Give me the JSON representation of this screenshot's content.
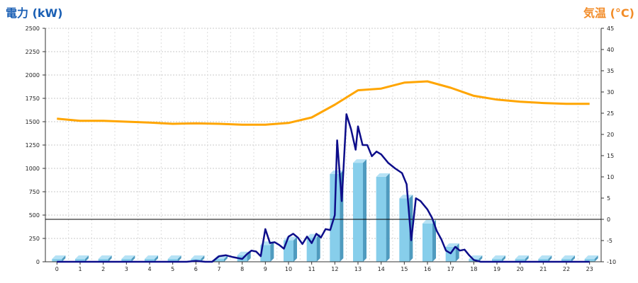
{
  "chart_data": {
    "type": "bar+line",
    "left_axis": {
      "label": "電力 (kW)",
      "min": 0,
      "max": 2500,
      "ticks": [
        0,
        250,
        500,
        750,
        1000,
        1250,
        1500,
        1750,
        2000,
        2250,
        2500
      ],
      "color": "#1a5fb4"
    },
    "right_axis": {
      "label": "気温 (°C)",
      "min": -10,
      "max": 45,
      "ticks": [
        -10,
        -5,
        0,
        5,
        10,
        15,
        20,
        25,
        30,
        35,
        40,
        45
      ],
      "color": "#f28c28"
    },
    "x_axis": {
      "categories": [
        "0",
        "1",
        "2",
        "3",
        "4",
        "5",
        "6",
        "7",
        "8",
        "9",
        "10",
        "11",
        "12",
        "13",
        "14",
        "15",
        "16",
        "17",
        "18",
        "19",
        "20",
        "21",
        "22",
        "23"
      ]
    },
    "grid": true,
    "series": [
      {
        "kind": "bar",
        "axis": "left",
        "color": "#87ceeb",
        "values": [
          30,
          30,
          30,
          30,
          30,
          30,
          30,
          30,
          70,
          180,
          230,
          260,
          940,
          1060,
          910,
          680,
          410,
          160,
          30,
          30,
          30,
          30,
          30,
          30
        ]
      },
      {
        "kind": "line",
        "axis": "left",
        "color": "#0d0d8a",
        "points": [
          [
            0,
            0
          ],
          [
            1,
            0
          ],
          [
            2,
            0
          ],
          [
            3,
            0
          ],
          [
            4,
            0
          ],
          [
            5,
            0
          ],
          [
            5.6,
            0
          ],
          [
            6,
            10
          ],
          [
            6.4,
            0
          ],
          [
            6.7,
            0
          ],
          [
            7,
            60
          ],
          [
            7.3,
            70
          ],
          [
            7.6,
            50
          ],
          [
            8,
            30
          ],
          [
            8.2,
            80
          ],
          [
            8.4,
            120
          ],
          [
            8.6,
            110
          ],
          [
            8.8,
            60
          ],
          [
            9,
            350
          ],
          [
            9.2,
            200
          ],
          [
            9.4,
            210
          ],
          [
            9.6,
            180
          ],
          [
            9.8,
            140
          ],
          [
            10,
            270
          ],
          [
            10.2,
            300
          ],
          [
            10.4,
            260
          ],
          [
            10.6,
            190
          ],
          [
            10.8,
            270
          ],
          [
            11,
            200
          ],
          [
            11.2,
            300
          ],
          [
            11.4,
            260
          ],
          [
            11.6,
            350
          ],
          [
            11.8,
            340
          ],
          [
            12,
            500
          ],
          [
            12.1,
            1300
          ],
          [
            12.3,
            650
          ],
          [
            12.5,
            1580
          ],
          [
            12.7,
            1420
          ],
          [
            12.9,
            1200
          ],
          [
            13,
            1450
          ],
          [
            13.2,
            1250
          ],
          [
            13.4,
            1250
          ],
          [
            13.6,
            1130
          ],
          [
            13.8,
            1180
          ],
          [
            14,
            1150
          ],
          [
            14.3,
            1060
          ],
          [
            14.6,
            1000
          ],
          [
            14.9,
            950
          ],
          [
            15.1,
            830
          ],
          [
            15.3,
            230
          ],
          [
            15.5,
            680
          ],
          [
            15.7,
            650
          ],
          [
            16,
            560
          ],
          [
            16.2,
            470
          ],
          [
            16.4,
            330
          ],
          [
            16.6,
            240
          ],
          [
            16.8,
            120
          ],
          [
            17,
            90
          ],
          [
            17.2,
            160
          ],
          [
            17.4,
            120
          ],
          [
            17.6,
            130
          ],
          [
            17.8,
            70
          ],
          [
            18,
            20
          ],
          [
            18.3,
            0
          ],
          [
            19,
            0
          ],
          [
            20,
            0
          ],
          [
            21,
            0
          ],
          [
            22,
            0
          ],
          [
            23,
            0
          ]
        ]
      },
      {
        "kind": "line",
        "axis": "right",
        "color": "#ffa500",
        "points": [
          [
            0,
            23.7
          ],
          [
            1,
            23.2
          ],
          [
            2,
            23.2
          ],
          [
            3,
            23.0
          ],
          [
            4,
            22.8
          ],
          [
            5,
            22.5
          ],
          [
            6,
            22.6
          ],
          [
            7,
            22.5
          ],
          [
            8,
            22.3
          ],
          [
            9,
            22.3
          ],
          [
            10,
            22.7
          ],
          [
            11,
            24.0
          ],
          [
            12,
            27.0
          ],
          [
            13,
            30.4
          ],
          [
            14,
            30.8
          ],
          [
            15,
            32.2
          ],
          [
            16,
            32.5
          ],
          [
            17,
            31.0
          ],
          [
            18,
            29.1
          ],
          [
            19,
            28.2
          ],
          [
            20,
            27.7
          ],
          [
            21,
            27.4
          ],
          [
            22,
            27.2
          ],
          [
            23,
            27.2
          ]
        ]
      }
    ]
  }
}
